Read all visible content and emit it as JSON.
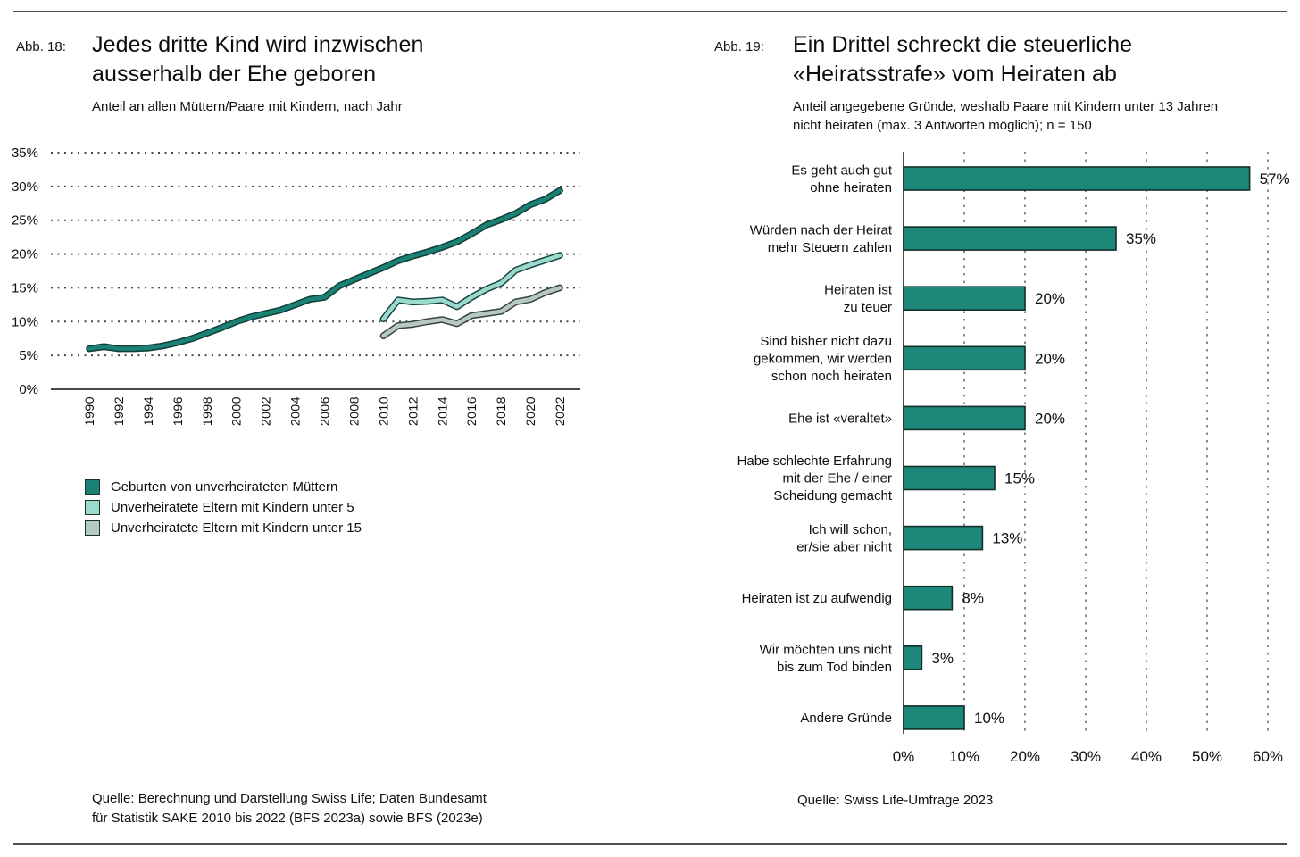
{
  "page": {
    "background": "#ffffff",
    "rule_color": "#4d4d4d"
  },
  "fig18": {
    "label": "Abb. 18:",
    "title_lines": [
      "Jedes dritte Kind wird inzwischen",
      "ausserhalb der Ehe geboren"
    ],
    "subtitle_lines": [
      "Anteil an allen Müttern/Paare mit Kindern, nach Jahr"
    ],
    "source_lines": [
      "Quelle: Berechnung und Darstellung Swiss Life; Daten Bundesamt",
      "für Statistik SAKE 2010 bis 2022 (BFS 2023a) sowie BFS (2023e)"
    ]
  },
  "fig19": {
    "label": "Abb. 19:",
    "title_lines": [
      "Ein Drittel schreckt die steuerliche",
      "«Heiratsstrafe» vom Heiraten ab"
    ],
    "subtitle_lines": [
      "Anteil angegebene Gründe, weshalb Paare mit Kindern unter 13 Jahren",
      "nicht heiraten (max. 3 Antworten möglich); n = 150"
    ],
    "source_lines": [
      "Quelle: Swiss Life-Umfrage 2023"
    ]
  },
  "chart_data": [
    {
      "type": "line",
      "title": "Jedes dritte Kind wird inzwischen ausserhalb der Ehe geboren",
      "subtitle": "Anteil an allen Müttern/Paare mit Kindern, nach Jahr",
      "xlabel": "",
      "ylabel": "",
      "ylim": [
        0,
        35
      ],
      "y_ticks": [
        0,
        5,
        10,
        15,
        20,
        25,
        30,
        35
      ],
      "y_tick_labels": [
        "0%",
        "5%",
        "10%",
        "15%",
        "20%",
        "25%",
        "30%",
        "35%"
      ],
      "x_range": [
        1990,
        2022
      ],
      "x_tick_labels": [
        "1990",
        "1992",
        "1994",
        "1996",
        "1998",
        "2000",
        "2002",
        "2004",
        "2006",
        "2008",
        "2010",
        "2012",
        "2014",
        "2016",
        "2018",
        "2020",
        "2022"
      ],
      "grid": "horizontal-dotted",
      "legend_position": "below-left",
      "series": [
        {
          "name": "Geburten von unverheirateten Müttern",
          "color": "#1a8174",
          "outline": "#0f3f38",
          "x_start": 1990,
          "values": [
            6.0,
            6.3,
            6.0,
            6.0,
            6.1,
            6.4,
            6.9,
            7.5,
            8.3,
            9.1,
            10.0,
            10.7,
            11.2,
            11.7,
            12.5,
            13.3,
            13.6,
            15.3,
            16.2,
            17.1,
            18.0,
            19.0,
            19.7,
            20.3,
            21.0,
            21.8,
            23.0,
            24.3,
            25.1,
            26.0,
            27.3,
            28.1,
            29.4
          ]
        },
        {
          "name": "Unverheiratete Eltern mit Kindern unter 5",
          "color": "#9cdacd",
          "outline": "#174540",
          "x_start": 2010,
          "values": [
            10.4,
            13.2,
            12.9,
            13.0,
            13.2,
            12.2,
            13.6,
            14.8,
            15.7,
            17.6,
            18.4,
            19.1,
            19.8
          ]
        },
        {
          "name": "Unverheiratete Eltern mit Kindern unter 15",
          "color": "#b7c8c0",
          "outline": "#33443e",
          "x_start": 2010,
          "values": [
            7.9,
            9.4,
            9.6,
            10.0,
            10.3,
            9.7,
            10.9,
            11.2,
            11.5,
            12.9,
            13.3,
            14.3,
            15.0
          ]
        }
      ]
    },
    {
      "type": "bar",
      "orientation": "horizontal",
      "title": "Ein Drittel schreckt die steuerliche «Heiratsstrafe» vom Heiraten ab",
      "subtitle": "Anteil angegebene Gründe, weshalb Paare mit Kindern unter 13 Jahren nicht heiraten (max. 3 Antworten möglich); n = 150",
      "bar_color": "#1d8779",
      "bar_outline": "#11302b",
      "xlim": [
        0,
        60
      ],
      "x_ticks": [
        0,
        10,
        20,
        30,
        40,
        50,
        60
      ],
      "x_tick_labels": [
        "0%",
        "10%",
        "20%",
        "30%",
        "40%",
        "50%",
        "60%"
      ],
      "grid": "vertical-dashed",
      "categories": [
        "Es geht auch gut ohne heiraten",
        "Würden nach der Heirat mehr Steuern zahlen",
        "Heiraten ist zu teuer",
        "Sind bisher nicht dazu gekommen, wir werden schon noch heiraten",
        "Ehe ist «veraltet»",
        "Habe schlechte Erfahrung mit der Ehe / einer Scheidung gemacht",
        "Ich will schon, er/sie aber nicht",
        "Heiraten ist zu aufwendig",
        "Wir möchten uns nicht bis zum Tod binden",
        "Andere Gründe"
      ],
      "category_label_lines": [
        [
          "Es geht auch gut",
          "ohne heiraten"
        ],
        [
          "Würden nach der Heirat",
          "mehr Steuern zahlen"
        ],
        [
          "Heiraten ist",
          "zu teuer"
        ],
        [
          "Sind bisher nicht dazu",
          "gekommen, wir werden",
          "schon noch heiraten"
        ],
        [
          "Ehe ist «veraltet»"
        ],
        [
          "Habe schlechte Erfahrung",
          "mit der Ehe / einer",
          "Scheidung gemacht"
        ],
        [
          "Ich will schon,",
          "er/sie aber nicht"
        ],
        [
          "Heiraten ist zu aufwendig"
        ],
        [
          "Wir möchten uns nicht",
          "bis zum Tod binden"
        ],
        [
          "Andere Gründe"
        ]
      ],
      "values": [
        57,
        35,
        20,
        20,
        20,
        15,
        13,
        8,
        3,
        10
      ],
      "value_labels": [
        "57%",
        "35%",
        "20%",
        "20%",
        "20%",
        "15%",
        "13%",
        "8%",
        "3%",
        "10%"
      ]
    }
  ]
}
